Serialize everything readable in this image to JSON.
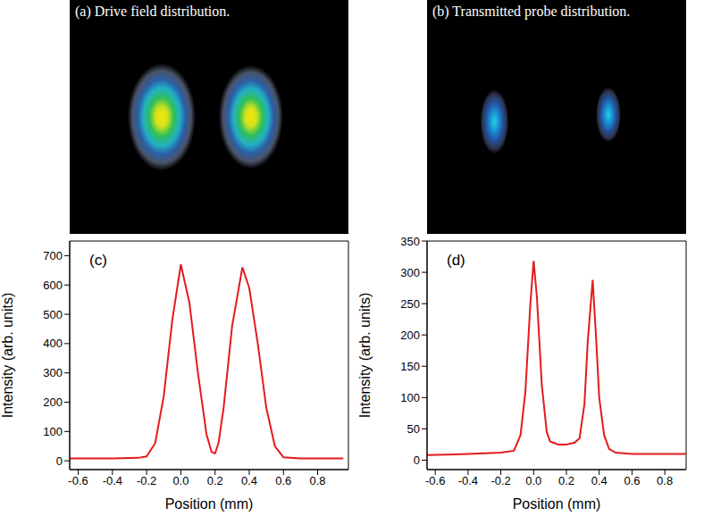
{
  "chart_data": [
    {
      "type": "image",
      "title": "(a) Drive field distribution."
    },
    {
      "type": "image",
      "title": "(b) Transmitted probe distribution."
    },
    {
      "type": "line",
      "title": "(c)",
      "x_label": "Position (mm)",
      "y_label": "Intensity (arb. units)",
      "color": "#e41a1c",
      "x": [
        -0.65,
        -0.4,
        -0.25,
        -0.2,
        -0.15,
        -0.1,
        -0.05,
        0,
        0.05,
        0.1,
        0.15,
        0.18,
        0.2,
        0.22,
        0.25,
        0.3,
        0.36,
        0.4,
        0.45,
        0.5,
        0.55,
        0.6,
        0.7,
        0.95
      ],
      "values": [
        8,
        8,
        10,
        15,
        60,
        220,
        480,
        670,
        540,
        300,
        90,
        30,
        25,
        60,
        180,
        460,
        660,
        590,
        400,
        180,
        50,
        12,
        8,
        8
      ],
      "xlim": [
        -0.65,
        0.98
      ],
      "xticks": [
        -0.6,
        -0.4,
        -0.2,
        {
          "value": 0,
          "label": "0.0"
        },
        0.2,
        0.4,
        0.6,
        0.8
      ],
      "ylim": [
        -30,
        750
      ],
      "yticks": [
        0,
        100,
        200,
        300,
        400,
        500,
        600,
        700
      ]
    },
    {
      "type": "line",
      "title": "(d)",
      "x_label": "Position (mm)",
      "y_label": "Intensity (arb. units)",
      "color": "#e41a1c",
      "x": [
        -0.65,
        -0.4,
        -0.2,
        -0.12,
        -0.08,
        -0.05,
        -0.02,
        0,
        0.02,
        0.05,
        0.08,
        0.1,
        0.15,
        0.2,
        0.25,
        0.28,
        0.31,
        0.33,
        0.36,
        0.38,
        0.4,
        0.43,
        0.46,
        0.5,
        0.6,
        0.93
      ],
      "values": [
        8,
        10,
        12,
        15,
        40,
        110,
        250,
        318,
        260,
        120,
        45,
        30,
        25,
        25,
        28,
        35,
        90,
        190,
        288,
        200,
        100,
        40,
        18,
        12,
        10,
        10
      ],
      "xlim": [
        -0.65,
        0.93
      ],
      "xticks": [
        -0.6,
        -0.4,
        -0.2,
        {
          "value": 0,
          "label": "0.0"
        },
        0.2,
        0.4,
        0.6,
        0.8
      ],
      "ylim": [
        -15,
        350
      ],
      "yticks": [
        0,
        50,
        100,
        150,
        200,
        250,
        300,
        350
      ]
    }
  ]
}
